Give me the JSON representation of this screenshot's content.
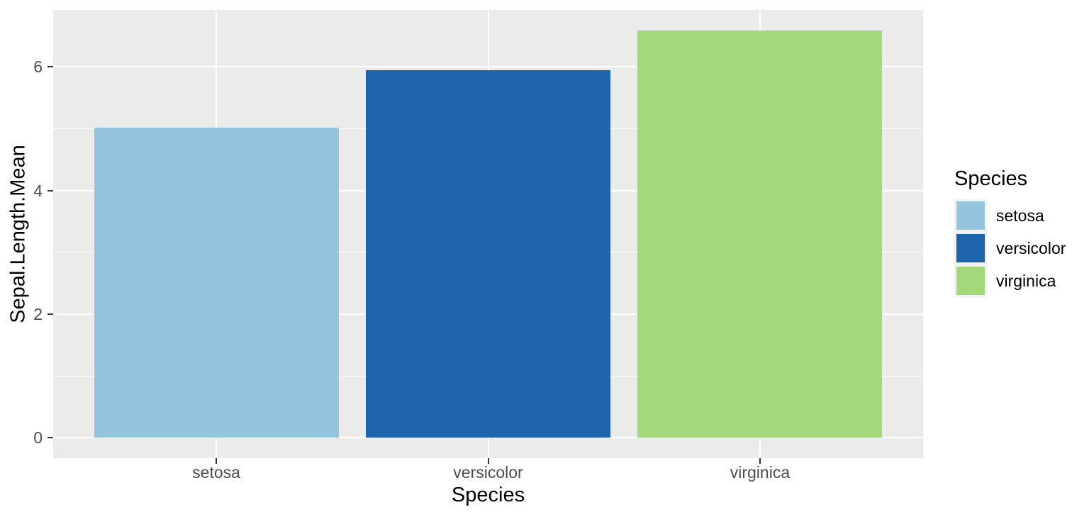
{
  "chart_data": {
    "type": "bar",
    "title": "",
    "categories": [
      "setosa",
      "versicolor",
      "virginica"
    ],
    "values": [
      5.01,
      5.94,
      6.59
    ],
    "bar_colors": [
      "#95C4DF",
      "#2065AC",
      "#A2DA7B"
    ],
    "xlabel": "Species",
    "ylabel": "Sepal.Length.Mean",
    "ylim": [
      -0.33,
      6.92
    ],
    "y_major_ticks": [
      0,
      2,
      4,
      6
    ],
    "y_minor_ticks": [
      1,
      3,
      5
    ],
    "grid": "white major+minor horizontal lines, white major vertical line at each category, drawn under bars",
    "panel_background": "#EBEBEB",
    "gridline_color": "#FFFFFF",
    "tick_mark_color": "#333333",
    "tick_label_color": "#4D4D4D",
    "legend": {
      "title": "Species",
      "position": "right",
      "key_background": "#F2F2F2",
      "entries": [
        {
          "label": "setosa",
          "color": "#95C4DF"
        },
        {
          "label": "versicolor",
          "color": "#2065AC"
        },
        {
          "label": "virginica",
          "color": "#A2DA7B"
        }
      ]
    }
  }
}
